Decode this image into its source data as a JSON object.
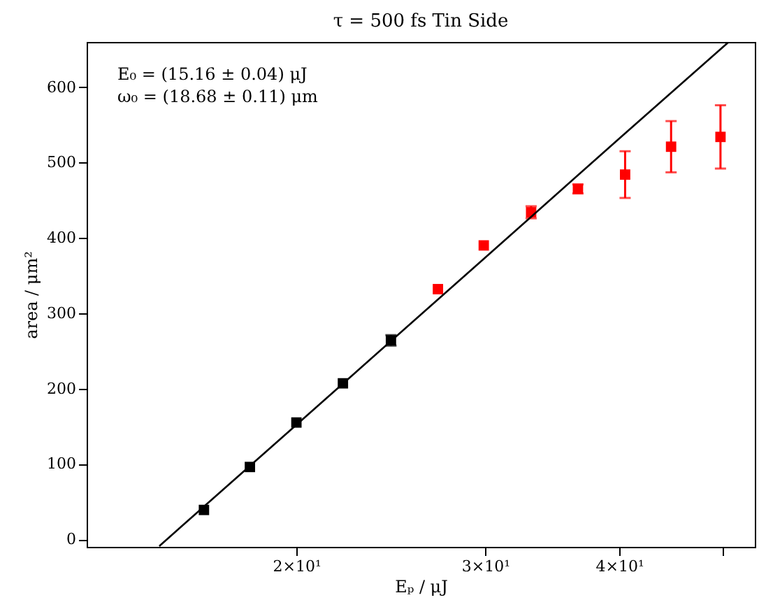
{
  "chart_data": {
    "type": "scatter",
    "title": "τ = 500 fs Tin Side",
    "xlabel": "Eₚ / μJ",
    "ylabel": "area / μm²",
    "annotations": [
      "E₀ = (15.16 ± 0.04) μJ",
      "ω₀ = (18.68 ± 0.11) μm"
    ],
    "log": "x",
    "xlim": [
      12.75,
      53.5
    ],
    "ylim": [
      -10,
      660
    ],
    "xticks": [
      {
        "value": 20,
        "label": "2×10¹"
      },
      {
        "value": 30,
        "label": "3×10¹"
      },
      {
        "value": 40,
        "label": "4×10¹"
      },
      {
        "value": 50,
        "label": null
      }
    ],
    "yticks": [
      0,
      100,
      200,
      300,
      400,
      500,
      600
    ],
    "grid": false,
    "marker": "square",
    "series": [
      {
        "color": "#000000",
        "x": [
          16.4,
          18.1,
          20.0,
          22.1,
          24.5
        ],
        "values": [
          39,
          96,
          155,
          207,
          264
        ],
        "errors": [
          null,
          null,
          null,
          null,
          7
        ]
      },
      {
        "color": "#ff0000",
        "x": [
          27.1,
          29.9,
          33.1,
          36.6,
          40.5,
          44.7,
          49.7
        ],
        "values": [
          332,
          390,
          434,
          465,
          484,
          521,
          534
        ],
        "errors": [
          null,
          null,
          8,
          6,
          31,
          34,
          42
        ]
      },
      {
        "type": "line",
        "color": "#000000",
        "marker": "none",
        "x": [
          14.9,
          20,
          30,
          40,
          50.5
        ],
        "values": [
          -9,
          152,
          374,
          532,
          659
        ]
      }
    ]
  }
}
